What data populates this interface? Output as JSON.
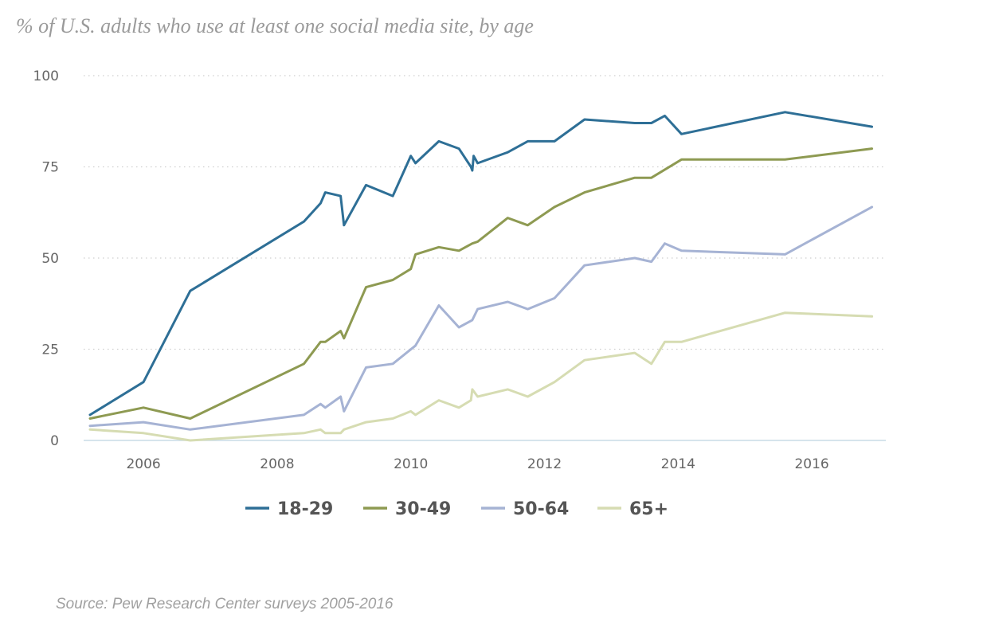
{
  "title": "% of U.S. adults who use at least one social media site, by age",
  "source": "Source: Pew Research Center surveys 2005-2016",
  "chart_data": {
    "type": "line",
    "title": "% of U.S. adults who use at least one social media site, by age",
    "xlabel": "",
    "ylabel": "",
    "xlim": [
      2005.2,
      2017.0
    ],
    "ylim": [
      0,
      100
    ],
    "x_ticks": [
      2006,
      2008,
      2010,
      2012,
      2014,
      2016
    ],
    "x_tick_labels": [
      "2006",
      "2008",
      "2010",
      "2012",
      "2014",
      "2016"
    ],
    "y_ticks": [
      0,
      25,
      50,
      75,
      100
    ],
    "y_tick_labels": [
      "0",
      "25",
      "50",
      "75",
      "100"
    ],
    "grid": "horizontal dotted",
    "legend_position": "bottom",
    "series": [
      {
        "name": "18-29",
        "color": "#2e6f96",
        "points": [
          [
            2005.2,
            7
          ],
          [
            2006.0,
            16
          ],
          [
            2006.7,
            41
          ],
          [
            2008.4,
            60
          ],
          [
            2008.65,
            65
          ],
          [
            2008.72,
            68
          ],
          [
            2008.95,
            67
          ],
          [
            2009.0,
            59
          ],
          [
            2009.33,
            70
          ],
          [
            2009.73,
            67
          ],
          [
            2010.0,
            78
          ],
          [
            2010.07,
            76
          ],
          [
            2010.42,
            82
          ],
          [
            2010.72,
            80
          ],
          [
            2010.9,
            75
          ],
          [
            2010.92,
            74
          ],
          [
            2010.94,
            78
          ],
          [
            2011.0,
            76
          ],
          [
            2011.45,
            79
          ],
          [
            2011.75,
            82
          ],
          [
            2012.15,
            82
          ],
          [
            2012.6,
            88
          ],
          [
            2013.35,
            87
          ],
          [
            2013.6,
            87
          ],
          [
            2013.8,
            89
          ],
          [
            2014.05,
            84
          ],
          [
            2015.6,
            90
          ],
          [
            2016.9,
            86
          ]
        ]
      },
      {
        "name": "30-49",
        "color": "#8e9a52",
        "points": [
          [
            2005.2,
            6
          ],
          [
            2006.0,
            9
          ],
          [
            2006.7,
            6
          ],
          [
            2008.4,
            21
          ],
          [
            2008.65,
            27
          ],
          [
            2008.72,
            27
          ],
          [
            2008.95,
            30
          ],
          [
            2009.0,
            28
          ],
          [
            2009.33,
            42
          ],
          [
            2009.73,
            44
          ],
          [
            2010.0,
            47
          ],
          [
            2010.07,
            51
          ],
          [
            2010.42,
            53
          ],
          [
            2010.72,
            52
          ],
          [
            2010.92,
            54
          ],
          [
            2011.0,
            54.5
          ],
          [
            2011.45,
            61
          ],
          [
            2011.75,
            59
          ],
          [
            2012.15,
            64
          ],
          [
            2012.6,
            68
          ],
          [
            2013.35,
            72
          ],
          [
            2013.6,
            72
          ],
          [
            2014.05,
            77
          ],
          [
            2015.6,
            77
          ],
          [
            2016.9,
            80
          ]
        ]
      },
      {
        "name": "50-64",
        "color": "#a6b3d4",
        "points": [
          [
            2005.2,
            4
          ],
          [
            2006.0,
            5
          ],
          [
            2006.7,
            3
          ],
          [
            2008.4,
            7
          ],
          [
            2008.65,
            10
          ],
          [
            2008.72,
            9
          ],
          [
            2008.95,
            12
          ],
          [
            2009.0,
            8
          ],
          [
            2009.33,
            20
          ],
          [
            2009.73,
            21
          ],
          [
            2010.07,
            26
          ],
          [
            2010.42,
            37
          ],
          [
            2010.72,
            31
          ],
          [
            2010.92,
            33
          ],
          [
            2011.0,
            36
          ],
          [
            2011.45,
            38
          ],
          [
            2011.75,
            36
          ],
          [
            2012.15,
            39
          ],
          [
            2012.6,
            48
          ],
          [
            2013.35,
            50
          ],
          [
            2013.6,
            49
          ],
          [
            2013.8,
            54
          ],
          [
            2014.05,
            52
          ],
          [
            2015.6,
            51
          ],
          [
            2016.9,
            64
          ]
        ]
      },
      {
        "name": "65+",
        "color": "#d6dcb2",
        "points": [
          [
            2005.2,
            3
          ],
          [
            2006.0,
            2
          ],
          [
            2006.7,
            0
          ],
          [
            2008.4,
            2
          ],
          [
            2008.65,
            3
          ],
          [
            2008.72,
            2
          ],
          [
            2008.95,
            2
          ],
          [
            2009.0,
            3
          ],
          [
            2009.33,
            5
          ],
          [
            2009.73,
            6
          ],
          [
            2010.0,
            8
          ],
          [
            2010.07,
            7
          ],
          [
            2010.42,
            11
          ],
          [
            2010.72,
            9
          ],
          [
            2010.9,
            11
          ],
          [
            2010.92,
            14
          ],
          [
            2011.0,
            12
          ],
          [
            2011.45,
            14
          ],
          [
            2011.75,
            12
          ],
          [
            2012.15,
            16
          ],
          [
            2012.6,
            22
          ],
          [
            2013.35,
            24
          ],
          [
            2013.6,
            21
          ],
          [
            2013.8,
            27
          ],
          [
            2014.05,
            27
          ],
          [
            2015.6,
            35
          ],
          [
            2016.9,
            34
          ]
        ]
      }
    ]
  }
}
